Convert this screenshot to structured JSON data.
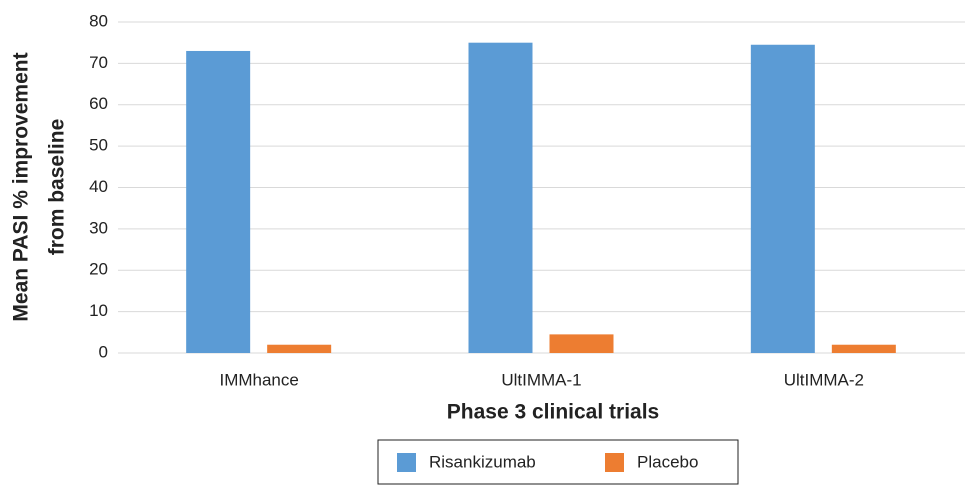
{
  "chart_data": {
    "type": "bar",
    "ylabel": [
      "Mean PASI % improvement",
      "from baseline"
    ],
    "xlabel": "Phase 3 clinical trials",
    "categories": [
      "IMMhance",
      "UltIMMA-1",
      "UltIMMA-2"
    ],
    "series": [
      {
        "name": "Risankizumab",
        "color": "#5b9bd5",
        "values": [
          73,
          75,
          74.5
        ]
      },
      {
        "name": "Placebo",
        "color": "#ed7d31",
        "values": [
          2,
          4.5,
          2
        ]
      }
    ],
    "ylim": [
      0,
      80
    ],
    "yticks": [
      0,
      10,
      20,
      30,
      40,
      50,
      60,
      70,
      80
    ],
    "grid": true,
    "legend": "bottom"
  }
}
